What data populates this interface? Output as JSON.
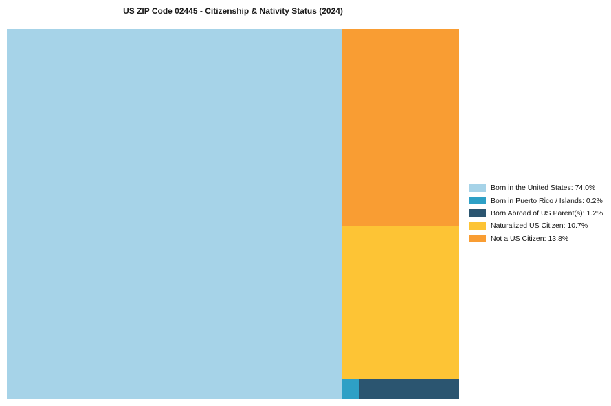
{
  "chart_data": {
    "type": "treemap",
    "title": "US ZIP Code 02445 - Citizenship & Nativity Status (2024)",
    "legend_position": "right",
    "units": "percent",
    "total": 100,
    "series": [
      {
        "key": "born_us",
        "name": "Born in the United States",
        "value": 74.0,
        "color": "#A6D3E8",
        "label": "Born in the United States: 74.0%"
      },
      {
        "key": "born_pr",
        "name": "Born in Puerto Rico / Islands",
        "value": 0.2,
        "color": "#2EA0C6",
        "label": "Born in Puerto Rico / Islands: 0.2%"
      },
      {
        "key": "born_abroad",
        "name": "Born Abroad of US Parent(s)",
        "value": 1.2,
        "color": "#2B5570",
        "label": "Born Abroad of US Parent(s): 1.2%"
      },
      {
        "key": "naturalized",
        "name": "Naturalized US Citizen",
        "value": 10.7,
        "color": "#FDC435",
        "label": "Naturalized US Citizen: 10.7%"
      },
      {
        "key": "not_citizen",
        "name": "Not a US Citizen",
        "value": 13.8,
        "color": "#F99D33",
        "label": "Not a US Citizen: 13.8%"
      }
    ],
    "layout": {
      "left_cell": "born_us",
      "right_column_top_to_bottom": [
        "not_citizen",
        "naturalized"
      ],
      "bottom_strip_left_to_right": [
        "born_pr",
        "born_abroad"
      ]
    }
  }
}
